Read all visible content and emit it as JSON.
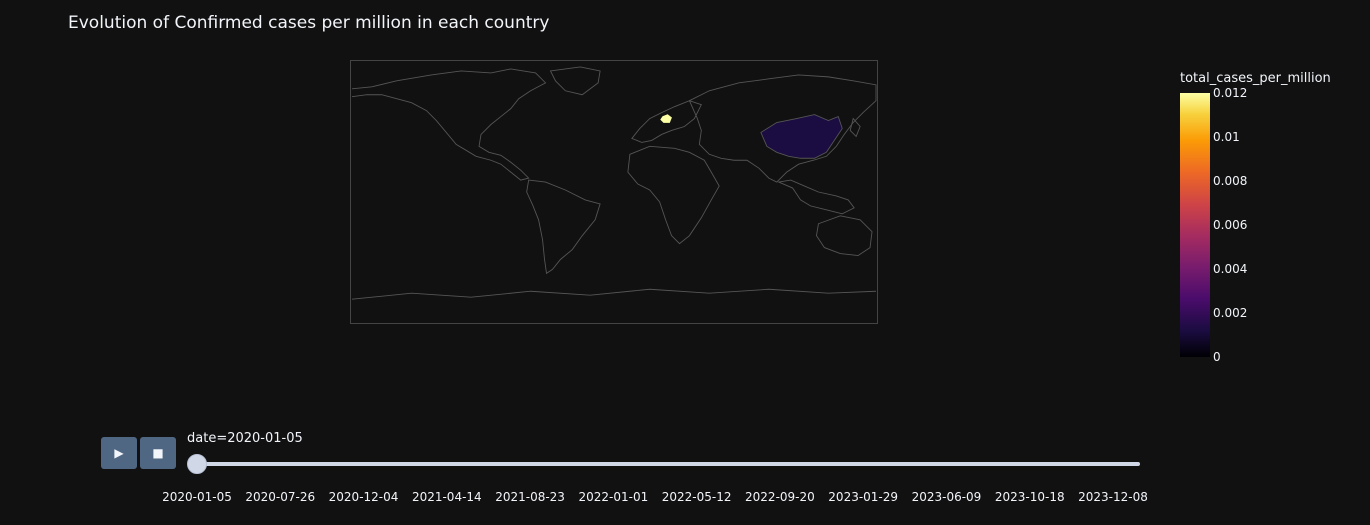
{
  "title": "Evolution of Confirmed cases per million in each country",
  "colorbar": {
    "title": "total_cases_per_million",
    "ticks": [
      "0",
      "0.002",
      "0.004",
      "0.006",
      "0.008",
      "0.01",
      "0.012"
    ],
    "range": [
      0,
      0.012
    ],
    "colorscale": "inferno"
  },
  "map": {
    "highlighted": [
      {
        "country": "China",
        "value": 0.0007,
        "color": "#1b0c41"
      },
      {
        "country": "Germany",
        "value": 0.012,
        "color": "#fcffa4"
      }
    ]
  },
  "controls": {
    "play_icon": "play-icon",
    "stop_icon": "stop-icon",
    "play_glyph": "▶",
    "stop_glyph": "■"
  },
  "slider": {
    "label": "date=2020-01-05",
    "current_index": 0,
    "ticks": [
      "2020-01-05",
      "2020-07-26",
      "2020-12-04",
      "2021-04-14",
      "2021-08-23",
      "2022-01-01",
      "2022-05-12",
      "2022-09-20",
      "2023-01-29",
      "2023-06-09",
      "2023-10-18",
      "2023-12-08"
    ]
  },
  "theme": {
    "background": "#111111",
    "border": "#444444",
    "land_stroke": "#555555",
    "button": "#506784",
    "slider": "#d0d7e6"
  }
}
